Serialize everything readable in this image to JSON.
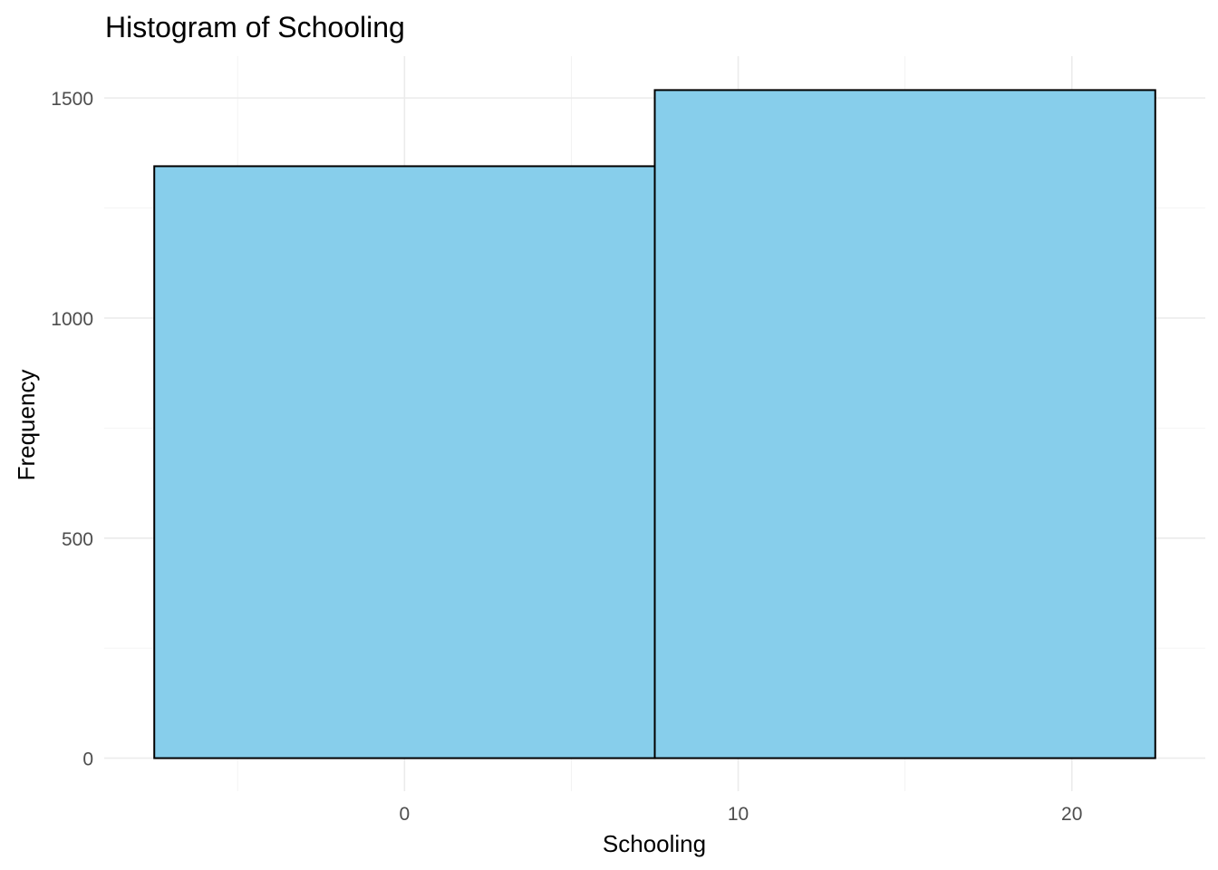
{
  "chart_data": {
    "type": "bar",
    "title": "Histogram of Schooling",
    "xlabel": "Schooling",
    "ylabel": "Frequency",
    "bins": [
      {
        "x0": -7.5,
        "x1": 7.5,
        "value": 1345
      },
      {
        "x0": 7.5,
        "x1": 22.5,
        "value": 1518
      }
    ],
    "xlim": [
      -9,
      24
    ],
    "ylim": [
      -75,
      1595
    ],
    "x_ticks": [
      0,
      10,
      20
    ],
    "x_minor_ticks": [
      -5,
      5,
      15
    ],
    "y_ticks": [
      0,
      500,
      1000,
      1500
    ],
    "y_minor_ticks": [
      250,
      750,
      1250
    ],
    "grid": true,
    "bar_fill": "#87CEEB",
    "bar_stroke": "#000000"
  }
}
